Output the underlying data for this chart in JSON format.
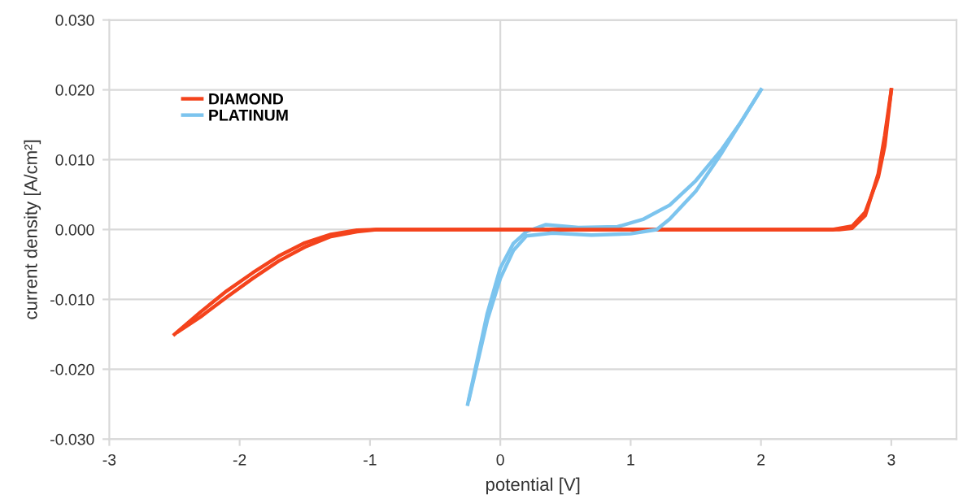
{
  "chart_data": {
    "type": "line",
    "xlabel": "potential [V]",
    "ylabel": "current density [A/cm²]",
    "xlim": [
      -3,
      3.5
    ],
    "xticks": [
      -3,
      -2,
      -1,
      0,
      1,
      2,
      3
    ],
    "ylim": [
      -0.03,
      0.03
    ],
    "yticks": [
      {
        "value": -0.03,
        "label": "-0.030"
      },
      {
        "value": -0.02,
        "label": "-0.020"
      },
      {
        "value": -0.01,
        "label": "-0.010"
      },
      {
        "value": 0,
        "label": "0.000"
      },
      {
        "value": 0.01,
        "label": "0.010"
      },
      {
        "value": 0.02,
        "label": "0.020"
      },
      {
        "value": 0.03,
        "label": "0.030"
      }
    ],
    "grid": "y",
    "legend": "top left",
    "marker": "none",
    "line_style": "solid",
    "ref_lines": [
      {
        "axis": "x",
        "value": 0,
        "color": "#d9d9d9"
      }
    ],
    "series": [
      {
        "name": "DIAMOND",
        "color": "#f4431c",
        "x": [
          -2.5,
          -2.3,
          -2.1,
          -1.9,
          -1.7,
          -1.5,
          -1.3,
          -1.1,
          -0.95,
          0,
          1,
          2,
          2.55,
          2.7,
          2.8,
          2.9,
          2.95,
          3
        ],
        "values": [
          -0.015,
          -0.0118,
          -0.0088,
          -0.0062,
          -0.0038,
          -0.0019,
          -0.0007,
          -0.0001,
          0,
          0,
          0,
          0,
          0,
          0.0005,
          0.0025,
          0.0075,
          0.012,
          0.02
        ]
      },
      {
        "name": "PLATINUM",
        "color": "#7cc4ee",
        "x": [
          -0.25,
          -0.1,
          0,
          0.1,
          0.2,
          0.35,
          0.6,
          0.9,
          1.1,
          1.3,
          1.5,
          1.7,
          1.85,
          2
        ],
        "values": [
          -0.025,
          -0.012,
          -0.0055,
          -0.002,
          -0.0003,
          0.0007,
          0.0003,
          0.0004,
          0.0015,
          0.0035,
          0.007,
          0.0115,
          0.0155,
          0.02
        ]
      },
      {
        "color": "#f4431c",
        "x": [
          -2.47,
          -2.3,
          -2.1,
          -1.9,
          -1.7,
          -1.5,
          -1.3,
          -1.1,
          -0.95,
          0,
          1,
          2,
          2.6,
          2.7,
          2.8,
          2.9,
          2.95,
          3
        ],
        "values": [
          -0.0146,
          -0.0125,
          -0.0097,
          -0.007,
          -0.0045,
          -0.0025,
          -0.001,
          -0.0003,
          0,
          0,
          0,
          0,
          0,
          0.0002,
          0.002,
          0.008,
          0.0135,
          0.02
        ]
      },
      {
        "color": "#7cc4ee",
        "x": [
          -0.24,
          -0.1,
          0,
          0.1,
          0.2,
          0.4,
          0.7,
          1.0,
          1.2,
          1.3,
          1.5,
          1.7,
          1.9,
          2
        ],
        "values": [
          -0.0243,
          -0.013,
          -0.007,
          -0.003,
          -0.0009,
          -0.0005,
          -0.0008,
          -0.0006,
          0,
          0.0015,
          0.0055,
          0.011,
          0.017,
          0.02
        ]
      }
    ]
  }
}
